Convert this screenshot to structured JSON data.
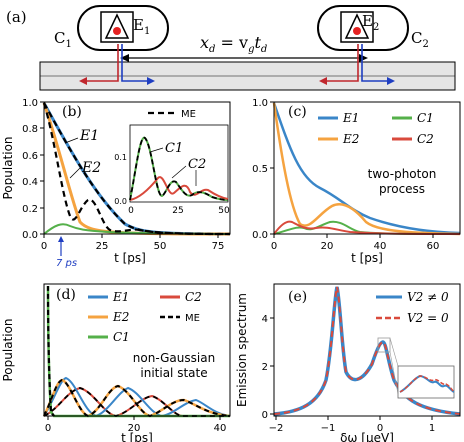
{
  "colors": {
    "blue": "#3a86c8",
    "orange": "#f5a340",
    "green": "#55b04a",
    "red": "#d94a3c",
    "black": "#000000"
  },
  "panel_a": {
    "tag": "(a)",
    "cavity1": "C",
    "cavity1_sub": "1",
    "emitter1": "E",
    "emitter1_sub": "1",
    "cavity2": "C",
    "cavity2_sub": "2",
    "emitter2": "E",
    "emitter2_sub": "2",
    "distance_formula": "x",
    "distance_sub": "d",
    "distance_eq": " = v",
    "velocity_sub": "g",
    "time": "t",
    "time_sub": "d"
  },
  "chart_data": [
    {
      "panel": "(b)",
      "type": "line",
      "ylabel": "Population",
      "xlabel": "t [ps]",
      "xlim": [
        0,
        80
      ],
      "ylim": [
        0,
        1.0
      ],
      "xticks": [
        "0",
        "25",
        "50",
        "75"
      ],
      "yticks": [
        "0.0",
        "0.2",
        "0.4",
        "0.6",
        "0.8",
        "1.0"
      ],
      "legend": [
        "ME"
      ],
      "annotations": [
        "E1",
        "E2",
        "7 ps"
      ],
      "inset": {
        "xticks": [
          "0",
          "25",
          "50"
        ],
        "yticks": [
          "0.0",
          "0.1"
        ],
        "annotations": [
          "C1",
          "C2"
        ]
      }
    },
    {
      "panel": "(c)",
      "type": "line",
      "xlabel": "t [ps]",
      "xlim": [
        0,
        70
      ],
      "ylim": [
        0,
        1.0
      ],
      "xticks": [
        "0",
        "20",
        "40",
        "60"
      ],
      "yticks": [
        "0.0",
        "0.5",
        "1.0"
      ],
      "legend": [
        "E1",
        "E2",
        "C1",
        "C2"
      ],
      "annotation": [
        "two-photon",
        "process"
      ]
    },
    {
      "panel": "(d)",
      "type": "line",
      "ylabel": "Population",
      "xlabel": "t [ps]",
      "xlim": [
        0,
        42
      ],
      "ylim": [
        0,
        1.0
      ],
      "xticks": [
        "0",
        "20",
        "40"
      ],
      "legend": [
        "E1",
        "C2",
        "E2",
        "ME",
        "C1"
      ],
      "annotation": [
        "non-Gaussian",
        "initial state"
      ]
    },
    {
      "panel": "(e)",
      "type": "line",
      "ylabel": "Emission spectrum",
      "xlabel": "δω [μeV]",
      "xlim": [
        -2,
        1.5
      ],
      "ylim": [
        0,
        5.5
      ],
      "xticks": [
        "−2",
        "−1",
        "0",
        "1"
      ],
      "yticks": [
        "0",
        "2",
        "4"
      ],
      "legend": [
        "V2 ≠ 0",
        "V2 = 0"
      ]
    }
  ]
}
